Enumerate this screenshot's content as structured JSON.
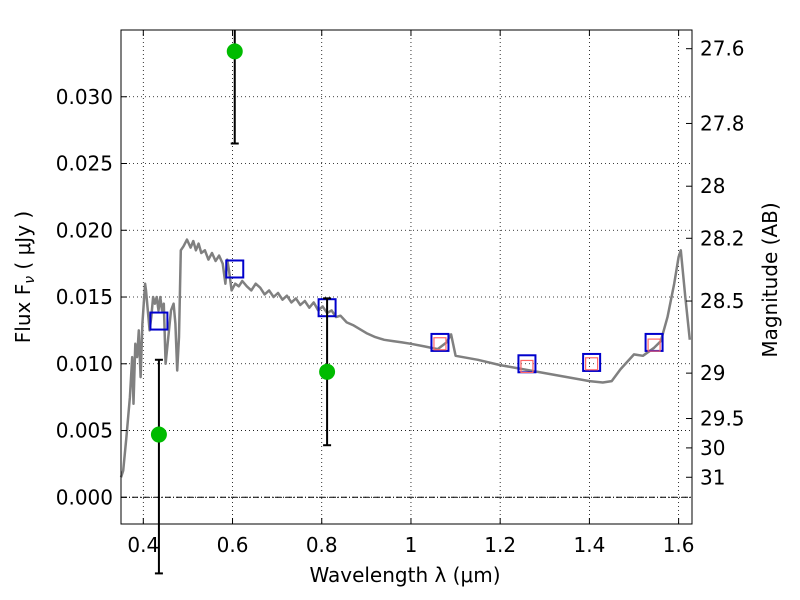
{
  "chart_data": {
    "type": "scatter",
    "title": "",
    "xlabel": "Wavelength  λ (μm)",
    "ylabel_left": "Flux  F",
    "ylabel_left_sub": "ν",
    "ylabel_left_unit": "  ( μJy )",
    "ylabel_right": "Magnitude (AB)",
    "xlim": [
      0.35,
      1.63
    ],
    "ylim": [
      -0.002,
      0.035
    ],
    "grid": true,
    "xticks": [
      0.4,
      0.6,
      0.8,
      1.0,
      1.2,
      1.4,
      1.6
    ],
    "xtick_labels": [
      "0.4",
      "0.6",
      "0.8",
      "1",
      "1.2",
      "1.4",
      "1.6"
    ],
    "yticks": [
      0.0,
      0.005,
      0.01,
      0.015,
      0.02,
      0.025,
      0.03
    ],
    "ytick_labels": [
      "0.000",
      "0.005",
      "0.010",
      "0.015",
      "0.020",
      "0.025",
      "0.030"
    ],
    "right_ticks": [
      {
        "label": "27.6",
        "flux": 0.0336
      },
      {
        "label": "27.8",
        "flux": 0.028
      },
      {
        "label": "28",
        "flux": 0.0233
      },
      {
        "label": "28.2",
        "flux": 0.0194
      },
      {
        "label": "28.5",
        "flux": 0.0147
      },
      {
        "label": "29",
        "flux": 0.0093
      },
      {
        "label": "29.5",
        "flux": 0.0059
      },
      {
        "label": "30",
        "flux": 0.0037
      },
      {
        "label": "31",
        "flux": 0.0015
      }
    ],
    "colors": {
      "model": "#808080",
      "photometry": "#00bb00",
      "model_flux": "#0000cc",
      "band_flux": "#ff6666",
      "errorbar": "#000000",
      "zero_line": "#000000"
    },
    "series": [
      {
        "style": "line",
        "color": "#808080",
        "x": [
          0.35,
          0.355,
          0.362,
          0.37,
          0.375,
          0.378,
          0.382,
          0.386,
          0.39,
          0.394,
          0.398,
          0.402,
          0.404,
          0.406,
          0.41,
          0.414,
          0.418,
          0.422,
          0.426,
          0.43,
          0.434,
          0.438,
          0.442,
          0.446,
          0.45,
          0.456,
          0.462,
          0.468,
          0.472,
          0.476,
          0.48,
          0.484,
          0.49,
          0.498,
          0.506,
          0.512,
          0.518,
          0.524,
          0.53,
          0.538,
          0.546,
          0.554,
          0.562,
          0.57,
          0.578,
          0.584,
          0.588,
          0.592,
          0.598,
          0.606,
          0.614,
          0.622,
          0.632,
          0.642,
          0.652,
          0.662,
          0.672,
          0.682,
          0.692,
          0.702,
          0.712,
          0.722,
          0.732,
          0.742,
          0.752,
          0.762,
          0.772,
          0.782,
          0.792,
          0.802,
          0.812,
          0.822,
          0.832,
          0.842,
          0.856,
          0.87,
          0.885,
          0.9,
          0.92,
          0.94,
          0.96,
          0.98,
          1.0,
          1.03,
          1.06,
          1.08,
          1.09,
          1.1,
          1.15,
          1.2,
          1.25,
          1.3,
          1.35,
          1.4,
          1.43,
          1.45,
          1.47,
          1.5,
          1.52,
          1.545,
          1.56,
          1.575,
          1.59,
          1.6,
          1.605,
          1.615,
          1.625
        ],
        "y": [
          0.0015,
          0.002,
          0.0045,
          0.0075,
          0.0105,
          0.007,
          0.0115,
          0.0105,
          0.0125,
          0.009,
          0.013,
          0.015,
          0.016,
          0.0155,
          0.014,
          0.0125,
          0.0135,
          0.015,
          0.0145,
          0.015,
          0.014,
          0.015,
          0.014,
          0.0145,
          0.01,
          0.012,
          0.014,
          0.0145,
          0.013,
          0.0095,
          0.012,
          0.0185,
          0.0188,
          0.0193,
          0.0187,
          0.0192,
          0.0185,
          0.019,
          0.0183,
          0.0185,
          0.0178,
          0.0183,
          0.0177,
          0.0181,
          0.0175,
          0.016,
          0.0178,
          0.017,
          0.0155,
          0.016,
          0.0158,
          0.0162,
          0.0158,
          0.0155,
          0.016,
          0.0157,
          0.0152,
          0.0155,
          0.015,
          0.0153,
          0.0148,
          0.0151,
          0.0146,
          0.0149,
          0.0144,
          0.0147,
          0.0142,
          0.0146,
          0.014,
          0.0143,
          0.0138,
          0.014,
          0.0135,
          0.0136,
          0.0131,
          0.0129,
          0.0126,
          0.0123,
          0.012,
          0.0118,
          0.0117,
          0.0116,
          0.0115,
          0.0113,
          0.0111,
          0.0116,
          0.0122,
          0.0106,
          0.0103,
          0.0099,
          0.0096,
          0.0093,
          0.009,
          0.0087,
          0.0086,
          0.0087,
          0.0096,
          0.0107,
          0.0106,
          0.0112,
          0.0117,
          0.0135,
          0.016,
          0.018,
          0.0185,
          0.015,
          0.0118
        ]
      },
      {
        "style": "squares",
        "color": "#0000cc",
        "x": [
          0.435,
          0.605,
          0.812,
          1.065,
          1.26,
          1.405,
          1.545
        ],
        "y": [
          0.0132,
          0.0171,
          0.0142,
          0.0116,
          0.01,
          0.0101,
          0.0116
        ]
      },
      {
        "style": "squares-small",
        "color": "#ff6666",
        "x": [
          1.065,
          1.26,
          1.405,
          1.545
        ],
        "y": [
          0.0115,
          0.0098,
          0.01,
          0.0114
        ]
      },
      {
        "style": "points-errorbars",
        "color": "#00bb00",
        "x": [
          0.435,
          0.605,
          0.812
        ],
        "y": [
          0.0047,
          0.0334,
          0.0094
        ],
        "err_low": [
          0.0104,
          0.0069,
          0.0055
        ],
        "err_high": [
          0.0056,
          0.002,
          0.0055
        ]
      }
    ]
  }
}
